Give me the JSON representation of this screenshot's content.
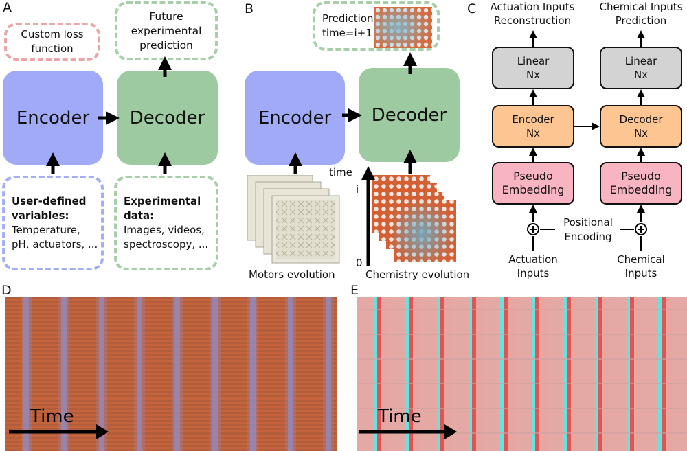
{
  "panels": {
    "a": "A",
    "b": "B",
    "c": "C",
    "d": "D",
    "e": "E"
  },
  "panel_a": {
    "custom_loss": "Custom loss function",
    "future_pred": "Future experimental prediction",
    "encoder": "Encoder",
    "decoder": "Decoder",
    "user_vars_title": "User-defined variables:",
    "user_vars_body": "Temperature, pH, actuators, ...",
    "exp_data_title": "Experimental data:",
    "exp_data_body": "Images, videos, spectroscopy, ..."
  },
  "panel_b": {
    "prediction": "Prediction time=i+1",
    "encoder": "Encoder",
    "decoder": "Decoder",
    "time_label": "time",
    "time_i": "i",
    "time_0": "0",
    "motors": "Motors evolution",
    "chemistry": "Chemistry evolution"
  },
  "panel_c": {
    "actuation_recon": "Actuation Inputs Reconstruction",
    "chemical_pred": "Chemical Inputs Prediction",
    "linear": "Linear",
    "nx": "Nx",
    "encoder": "Encoder",
    "decoder": "Decoder",
    "pseudo": "Pseudo",
    "embedding": "Embedding",
    "positional": "Positional",
    "encoding": "Encoding",
    "actuation_inputs": "Actuation Inputs",
    "chemical_inputs": "Chemical Inputs"
  },
  "panel_d": {
    "time": "Time"
  },
  "panel_e": {
    "time": "Time"
  },
  "colors": {
    "encoder": "#a0aaf7",
    "decoder": "#9ecaa2",
    "loss_border": "#eba5a8",
    "user_border": "#a4aef4",
    "data_border": "#a6cfa8",
    "linear": "#d3d3d3",
    "enc_dec_c": "#fcc592",
    "pseudo": "#f9b4c1"
  }
}
